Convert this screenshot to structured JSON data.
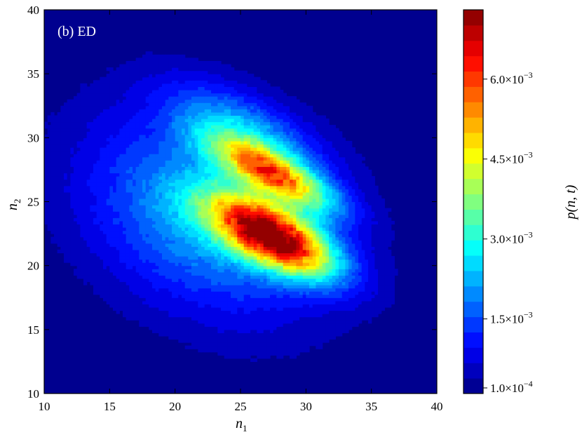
{
  "chart_data": {
    "type": "heatmap",
    "subtype": "filled-contour",
    "panel_label": "(b) ED",
    "xlabel": "n",
    "xlabel_sub": "1",
    "ylabel": "n",
    "ylabel_sub": "2",
    "xlim": [
      10,
      40
    ],
    "ylim": [
      10,
      40
    ],
    "xticks": [
      10,
      15,
      20,
      25,
      30,
      35,
      40
    ],
    "yticks": [
      10,
      15,
      20,
      25,
      30,
      35,
      40
    ],
    "colormap": "jet",
    "colorbar": {
      "label": "p(n⃗, t)",
      "label_main": "p(",
      "label_vec": "n",
      "label_rest": ", t)",
      "range": [
        0.0001,
        0.0073
      ],
      "levels": 25,
      "ticks": [
        {
          "value": 0.0001,
          "mantissa": "1.0",
          "exponent": "−4"
        },
        {
          "value": 0.0015,
          "mantissa": "1.5",
          "exponent": "−3"
        },
        {
          "value": 0.003,
          "mantissa": "3.0",
          "exponent": "−3"
        },
        {
          "value": 0.0045,
          "mantissa": "4.5",
          "exponent": "−3"
        },
        {
          "value": 0.006,
          "mantissa": "6.0",
          "exponent": "−3"
        }
      ]
    },
    "background_value": 0.0001,
    "components": [
      {
        "center": [
          27.5,
          22.3
        ],
        "sx": 3.6,
        "sy": 1.5,
        "theta_deg": -28,
        "amp": 0.0063
      },
      {
        "center": [
          27.5,
          27.2
        ],
        "sx": 3.6,
        "sy": 1.1,
        "theta_deg": -28,
        "amp": 0.0042
      },
      {
        "center": [
          25.5,
          30.5
        ],
        "sx": 4.5,
        "sy": 1.8,
        "theta_deg": -28,
        "amp": 0.0016
      },
      {
        "center": [
          22.5,
          24.0
        ],
        "sx": 7.0,
        "sy": 5.0,
        "theta_deg": -30,
        "amp": 0.0022
      }
    ]
  }
}
